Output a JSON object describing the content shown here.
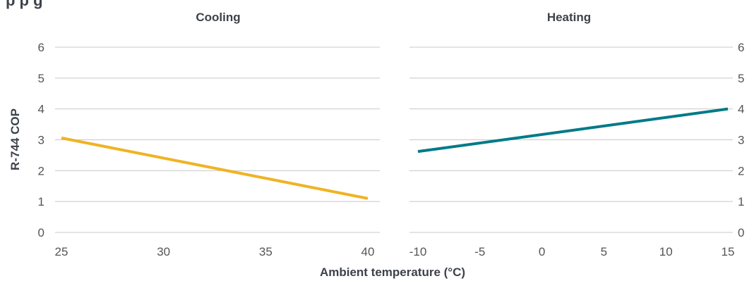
{
  "header": {
    "partial_title": "p p g"
  },
  "chart_data": [
    {
      "type": "line",
      "title": "Cooling",
      "xlabel": "Ambient temperature (°C)",
      "ylabel": "R-744 COP",
      "xlim": [
        25,
        40
      ],
      "ylim": [
        0,
        6
      ],
      "x_ticks": [
        "25",
        "30",
        "35",
        "40"
      ],
      "y_ticks": [
        "0",
        "1",
        "2",
        "3",
        "4",
        "5",
        "6"
      ],
      "y_axis_side": "left",
      "grid": "horizontal",
      "series": [
        {
          "color": "#f0b323",
          "x": [
            25,
            40
          ],
          "y": [
            3.06,
            1.1
          ]
        }
      ]
    },
    {
      "type": "line",
      "title": "Heating",
      "xlabel": "Ambient temperature (°C)",
      "ylabel": "",
      "xlim": [
        -10,
        15
      ],
      "ylim": [
        0,
        6
      ],
      "x_ticks": [
        "-10",
        "-5",
        "0",
        "5",
        "10",
        "15"
      ],
      "y_ticks": [
        "0",
        "1",
        "2",
        "3",
        "4",
        "5",
        "6"
      ],
      "y_axis_side": "right",
      "grid": "horizontal",
      "series": [
        {
          "color": "#007a87",
          "x": [
            -10,
            15
          ],
          "y": [
            2.62,
            4.0
          ]
        }
      ]
    }
  ]
}
